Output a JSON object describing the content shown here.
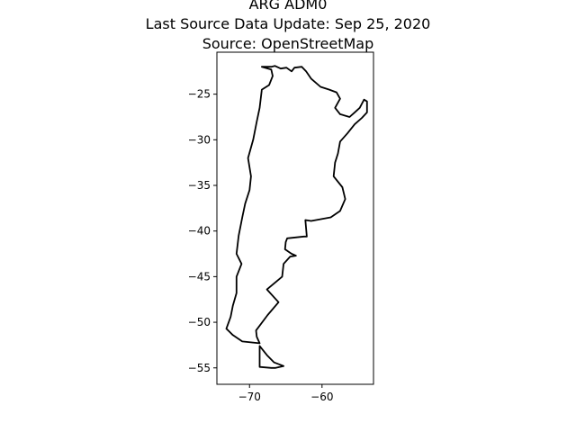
{
  "title": {
    "line1": "ARG ADM0",
    "line2": "Last Source Data Update: Sep 25, 2020",
    "line3": "Source: OpenStreetMap"
  },
  "chart_data": {
    "type": "map",
    "region": "Argentina",
    "admin_level": "ADM0",
    "xlim": [
      -74.5,
      -52.9
    ],
    "ylim": [
      -56.8,
      -20.4
    ],
    "x_ticks": [
      -70,
      -60
    ],
    "x_tick_labels": [
      "−70",
      "−60"
    ],
    "y_ticks": [
      -25,
      -30,
      -35,
      -40,
      -45,
      -50,
      -55
    ],
    "y_tick_labels": [
      "−25",
      "−30",
      "−35",
      "−40",
      "−45",
      "−50",
      "−55"
    ],
    "grid": false,
    "outline_color": "#000000",
    "mainland": [
      [
        -68.3,
        -22.0
      ],
      [
        -67.0,
        -22.0
      ],
      [
        -66.5,
        -21.9
      ],
      [
        -65.7,
        -22.2
      ],
      [
        -64.9,
        -22.1
      ],
      [
        -64.2,
        -22.5
      ],
      [
        -63.8,
        -22.1
      ],
      [
        -62.8,
        -22.0
      ],
      [
        -62.2,
        -22.5
      ],
      [
        -61.5,
        -23.3
      ],
      [
        -60.2,
        -24.2
      ],
      [
        -59.0,
        -24.5
      ],
      [
        -58.0,
        -24.8
      ],
      [
        -57.5,
        -25.5
      ],
      [
        -58.2,
        -26.5
      ],
      [
        -57.5,
        -27.2
      ],
      [
        -56.2,
        -27.5
      ],
      [
        -55.5,
        -27.0
      ],
      [
        -54.8,
        -26.5
      ],
      [
        -54.2,
        -25.6
      ],
      [
        -53.8,
        -25.8
      ],
      [
        -53.8,
        -27.0
      ],
      [
        -54.5,
        -27.6
      ],
      [
        -55.5,
        -28.3
      ],
      [
        -56.5,
        -29.3
      ],
      [
        -57.5,
        -30.2
      ],
      [
        -57.8,
        -31.5
      ],
      [
        -58.2,
        -32.5
      ],
      [
        -58.4,
        -34.0
      ],
      [
        -57.2,
        -35.2
      ],
      [
        -56.8,
        -36.5
      ],
      [
        -57.5,
        -37.8
      ],
      [
        -58.8,
        -38.5
      ],
      [
        -61.5,
        -38.9
      ],
      [
        -62.3,
        -38.8
      ],
      [
        -62.1,
        -40.6
      ],
      [
        -62.5,
        -40.6
      ],
      [
        -64.8,
        -40.8
      ],
      [
        -65.0,
        -41.2
      ],
      [
        -65.1,
        -42.0
      ],
      [
        -64.2,
        -42.5
      ],
      [
        -63.6,
        -42.7
      ],
      [
        -64.4,
        -42.8
      ],
      [
        -65.3,
        -43.6
      ],
      [
        -65.5,
        -45.0
      ],
      [
        -67.6,
        -46.4
      ],
      [
        -66.0,
        -47.8
      ],
      [
        -67.5,
        -49.2
      ],
      [
        -69.1,
        -50.9
      ],
      [
        -69.0,
        -51.6
      ],
      [
        -68.6,
        -52.3
      ],
      [
        -71.0,
        -52.1
      ],
      [
        -72.3,
        -51.4
      ],
      [
        -73.2,
        -50.7
      ],
      [
        -72.6,
        -49.4
      ],
      [
        -72.3,
        -48.2
      ],
      [
        -71.8,
        -46.8
      ],
      [
        -71.8,
        -45.0
      ],
      [
        -71.1,
        -43.6
      ],
      [
        -71.8,
        -42.5
      ],
      [
        -71.5,
        -40.5
      ],
      [
        -71.0,
        -38.5
      ],
      [
        -70.6,
        -37.0
      ],
      [
        -70.0,
        -35.5
      ],
      [
        -69.8,
        -34.0
      ],
      [
        -70.2,
        -32.0
      ],
      [
        -69.5,
        -30.0
      ],
      [
        -69.0,
        -28.0
      ],
      [
        -68.6,
        -26.5
      ],
      [
        -68.3,
        -24.5
      ],
      [
        -67.3,
        -24.0
      ],
      [
        -66.8,
        -23.0
      ],
      [
        -67.0,
        -22.3
      ],
      [
        -68.3,
        -22.0
      ]
    ],
    "tierra_del_fuego": [
      [
        -68.6,
        -52.6
      ],
      [
        -68.6,
        -54.9
      ],
      [
        -67.0,
        -55.0
      ],
      [
        -66.4,
        -55.0
      ],
      [
        -65.3,
        -54.8
      ],
      [
        -66.6,
        -54.4
      ],
      [
        -67.6,
        -53.6
      ],
      [
        -68.6,
        -52.6
      ]
    ]
  }
}
